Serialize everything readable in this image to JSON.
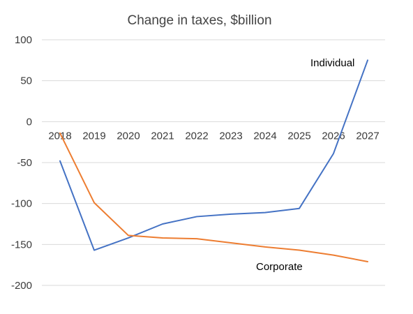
{
  "chart_data": {
    "type": "line",
    "title": "Change in taxes, $billion",
    "xlabel": "",
    "ylabel": "",
    "categories": [
      "2018",
      "2019",
      "2020",
      "2021",
      "2022",
      "2023",
      "2024",
      "2025",
      "2026",
      "2027"
    ],
    "yticks": [
      "100",
      "50",
      "0",
      "-50",
      "-100",
      "-150",
      "-200"
    ],
    "ylim": [
      -200,
      100
    ],
    "grid": true,
    "legend": "none",
    "series": [
      {
        "name": "Individual",
        "color": "#4472c4",
        "values": [
          -48,
          -157,
          -142,
          -125,
          -116,
          -113,
          -111,
          -106,
          -39,
          75
        ]
      },
      {
        "name": "Corporate",
        "color": "#ed7d31",
        "values": [
          -14,
          -99,
          -139,
          -142,
          -143,
          -148,
          -153,
          -157,
          -163,
          -171
        ]
      }
    ]
  }
}
